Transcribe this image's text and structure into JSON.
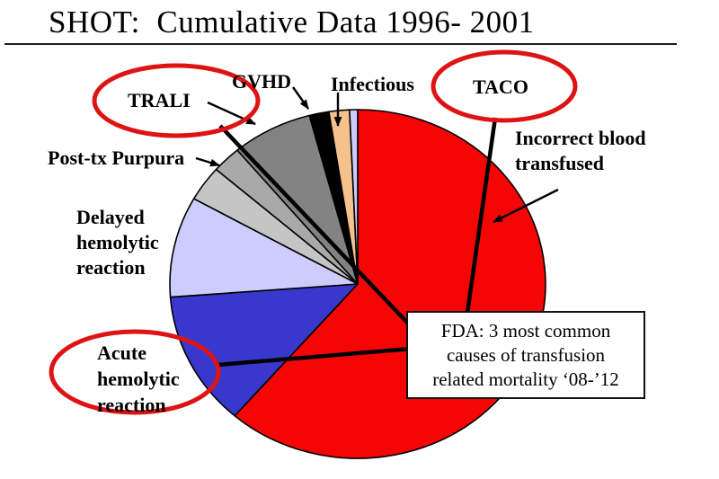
{
  "slide": {
    "title": "SHOT:  Cumulative Data 1996- 2001"
  },
  "annotations": {
    "circle_color": "#DE1414",
    "connector_color": "#000000",
    "labels": {
      "trali": {
        "text": "TRALI",
        "circled": true
      },
      "gvhd": {
        "text": "GVHD",
        "circled": false
      },
      "infectious": {
        "text": "Infectious",
        "circled": false
      },
      "taco": {
        "text": "TACO",
        "circled": true
      },
      "incorrect": {
        "lines": [
          "Incorrect blood",
          "transfused"
        ],
        "circled": false
      },
      "post_tx": {
        "text": "Post-tx Purpura",
        "circled": false
      },
      "delayed": {
        "lines": [
          "Delayed",
          "hemolytic",
          "reaction"
        ],
        "circled": false
      },
      "acute": {
        "lines": [
          "Acute",
          "hemolytic",
          "reaction"
        ],
        "circled": true
      }
    },
    "fda_box": {
      "lines": [
        "FDA: 3 most common",
        "causes of transfusion",
        "related mortality ‘08-’12"
      ]
    }
  },
  "chart_data": {
    "type": "pie",
    "title": "SHOT: Cumulative Data 1996- 2001",
    "legend_position": "none",
    "labels_as_callouts": true,
    "segments": [
      {
        "label": "Incorrect blood transfused",
        "start_angle": 0,
        "end_angle": 223,
        "percent": 61.9,
        "color": "#F50505"
      },
      {
        "label": "Acute hemolytic reaction",
        "start_angle": 223,
        "end_angle": 266,
        "percent": 11.9,
        "color": "#3838CC"
      },
      {
        "label": "Delayed hemolytic reaction",
        "start_angle": 266,
        "end_angle": 297.5,
        "percent": 8.8,
        "color": "#CCCCFF"
      },
      {
        "label": "Post-tx Purpura",
        "start_angle": 297.5,
        "end_angle": 309,
        "percent": 3.2,
        "color": "#C5C5C5"
      },
      {
        "label": "(unlabeled)",
        "start_angle": 309,
        "end_angle": 318,
        "percent": 2.5,
        "color": "#A9A9A9"
      },
      {
        "label": "TRALI",
        "start_angle": 318,
        "end_angle": 344,
        "percent": 7.2,
        "color": "#838383"
      },
      {
        "label": "GVHD",
        "start_angle": 344,
        "end_angle": 350.5,
        "percent": 1.8,
        "color": "#000000"
      },
      {
        "label": "Infectious",
        "start_angle": 350.5,
        "end_angle": 357.3,
        "percent": 1.9,
        "color": "#F4C28C"
      },
      {
        "label": "(unlabeled sliver)",
        "start_angle": 357.3,
        "end_angle": 360,
        "percent": 0.8,
        "color": "#CCCCFF"
      }
    ]
  }
}
